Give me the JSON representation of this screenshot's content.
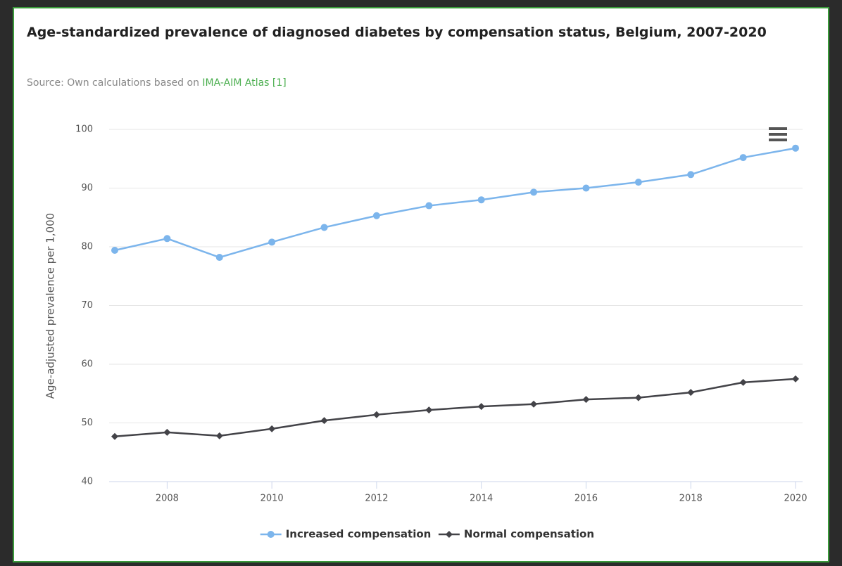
{
  "chart_data": {
    "type": "line",
    "title": "Age-standardized prevalence of diagnosed diabetes by compensation status, Belgium, 2007-2020",
    "source": {
      "text": "Source: Own calculations based on",
      "link": "IMA-AIM Atlas [1]"
    },
    "y_label": "Age-adjusted prevalence per 1,000",
    "x": [
      2007,
      2008,
      2009,
      2010,
      2011,
      2012,
      2013,
      2014,
      2015,
      2016,
      2017,
      2018,
      2019,
      2020
    ],
    "xlim": [
      2007,
      2020
    ],
    "xticks": [
      2008,
      2010,
      2012,
      2014,
      2016,
      2018,
      2020
    ],
    "ylim": [
      40,
      100
    ],
    "yticks": [
      40,
      50,
      60,
      70,
      80,
      90,
      100
    ],
    "grid": true,
    "legend": "bottom",
    "series": [
      {
        "name": "Increased compensation",
        "color": "#7cb5ec",
        "marker": "circle",
        "values": [
          79.4,
          81.4,
          78.2,
          80.8,
          83.3,
          85.3,
          87.0,
          88.0,
          89.3,
          90.0,
          91.0,
          92.3,
          95.2,
          96.8
        ]
      },
      {
        "name": "Normal compensation",
        "color": "#434348",
        "marker": "diamond",
        "values": [
          47.7,
          48.4,
          47.8,
          49.0,
          50.4,
          51.4,
          52.2,
          52.8,
          53.2,
          54.0,
          54.3,
          55.2,
          56.9,
          57.5
        ]
      }
    ]
  }
}
